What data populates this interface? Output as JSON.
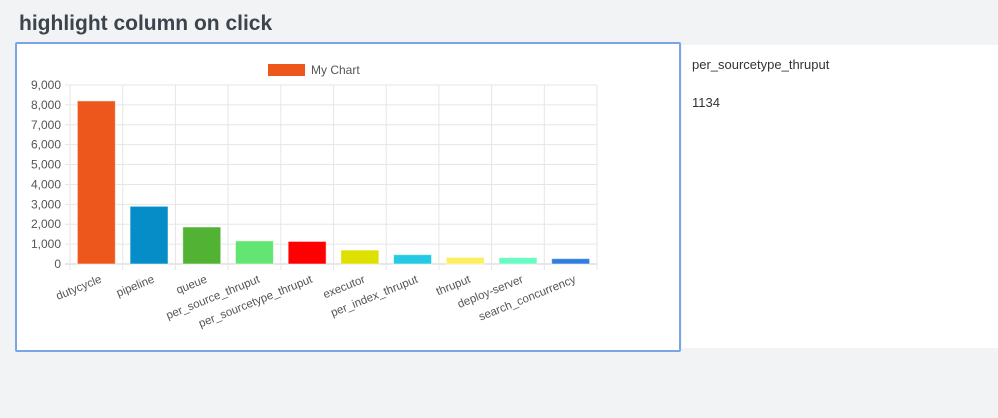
{
  "page_title": "highlight column on click",
  "side_panel": {
    "label": "per_sourcetype_thruput",
    "value": "1134"
  },
  "chart_data": {
    "type": "bar",
    "title": "",
    "legend": {
      "label": "My Chart",
      "position": "top"
    },
    "categories": [
      "dutycycle",
      "pipeline",
      "queue",
      "per_source_thruput",
      "per_sourcetype_thruput",
      "executor",
      "per_index_thruput",
      "thruput",
      "deploy-server",
      "search_concurrency"
    ],
    "series": [
      {
        "name": "My Chart",
        "values": [
          8200,
          2900,
          1860,
          1160,
          1134,
          700,
          470,
          330,
          320,
          270
        ]
      }
    ],
    "colors": [
      "#ee571c",
      "#068dc8",
      "#52b234",
      "#62e571",
      "#ff0000",
      "#dde000",
      "#26c9e3",
      "#fdee5f",
      "#66fbc0",
      "#2f7ede"
    ],
    "ylim": [
      0,
      9000
    ],
    "yticks": [
      "0",
      "1,000",
      "2,000",
      "3,000",
      "4,000",
      "5,000",
      "6,000",
      "7,000",
      "8,000",
      "9,000"
    ],
    "grid": true
  }
}
